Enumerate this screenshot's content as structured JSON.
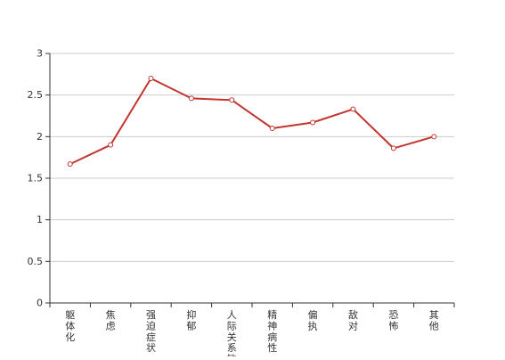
{
  "chart_data": {
    "type": "line",
    "title": "",
    "xlabel": "",
    "ylabel": "",
    "ylim": [
      0,
      3
    ],
    "y_ticks": [
      "0",
      "0.5",
      "1",
      "1.5",
      "2",
      "2.5",
      "3"
    ],
    "categories": [
      "躯体化",
      "焦虑",
      "强迫症状",
      "抑郁",
      "人际关系敏感",
      "精神病性",
      "偏执",
      "敌对",
      "恐怖",
      "其他"
    ],
    "series": [
      {
        "values": [
          1.67,
          1.9,
          2.7,
          2.46,
          2.44,
          2.1,
          2.17,
          2.33,
          1.86,
          2.0
        ],
        "color": "#c23531"
      }
    ],
    "grid": true,
    "grid_axis": "y",
    "legend": "none"
  }
}
